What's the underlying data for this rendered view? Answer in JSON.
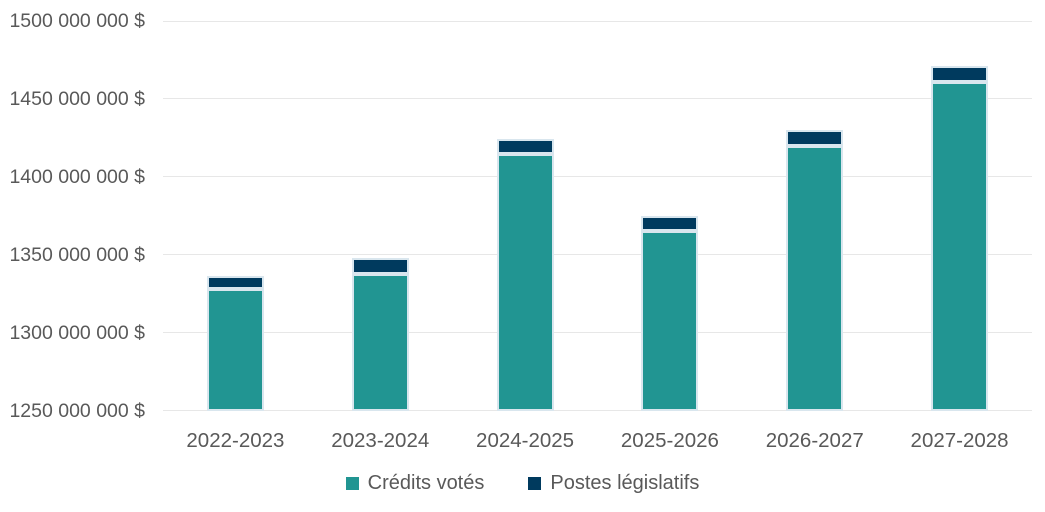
{
  "chart_data": {
    "type": "bar",
    "stacked": true,
    "title": "",
    "xlabel": "",
    "ylabel": "",
    "categories": [
      "2022-2023",
      "2023-2024",
      "2024-2025",
      "2025-2026",
      "2026-2027",
      "2027-2028"
    ],
    "series": [
      {
        "name": "Crédits votés",
        "color": "#219592",
        "values": [
          1328300000,
          1338100000,
          1414500000,
          1365100000,
          1420100000,
          1460900000
        ]
      },
      {
        "name": "Postes législatifs",
        "color": "#003A5E",
        "values": [
          8500000,
          10500000,
          9500000,
          9600000,
          10100000,
          10100000
        ]
      }
    ],
    "ylim": [
      1250000000,
      1500000000
    ],
    "yticks": [
      {
        "value": 1250000000,
        "label": "1250 000 000 $"
      },
      {
        "value": 1300000000,
        "label": "1300 000 000 $"
      },
      {
        "value": 1350000000,
        "label": "1350 000 000 $"
      },
      {
        "value": 1400000000,
        "label": "1400 000 000 $"
      },
      {
        "value": 1450000000,
        "label": "1450 000 000 $"
      },
      {
        "value": 1500000000,
        "label": "1500 000 000 $"
      }
    ],
    "grid": true,
    "legend_position": "bottom"
  },
  "legend": {
    "items": [
      {
        "label": "Crédits votés"
      },
      {
        "label": "Postes législatifs"
      }
    ]
  },
  "colors": {
    "background": "#FFFFFF",
    "text": "#595959",
    "gridline": "#E7E7E7",
    "segment_border": "#D9E6EE",
    "credits_votes": "#219592",
    "postes_legislatifs": "#003A5E"
  }
}
